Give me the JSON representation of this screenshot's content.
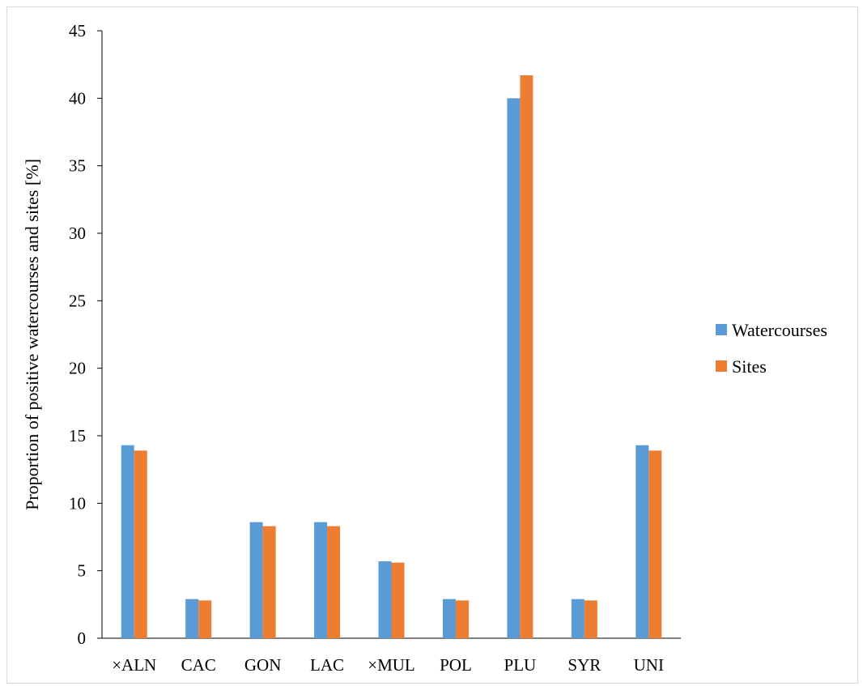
{
  "chart_data": {
    "type": "bar",
    "categories": [
      "×ALN",
      "CAC",
      "GON",
      "LAC",
      "×MUL",
      "POL",
      "PLU",
      "SYR",
      "UNI"
    ],
    "series": [
      {
        "name": "Watercourses",
        "color": "#5b9bd5",
        "values": [
          14.3,
          2.9,
          8.6,
          8.6,
          5.7,
          2.9,
          40.0,
          2.9,
          14.3
        ]
      },
      {
        "name": "Sites",
        "color": "#ed7d31",
        "values": [
          13.9,
          2.8,
          8.3,
          8.3,
          5.6,
          2.8,
          41.7,
          2.8,
          13.9
        ]
      }
    ],
    "title": "",
    "xlabel": "",
    "ylabel": "Proportion of positive watercourses and sites [%]",
    "ylim": [
      0,
      45
    ],
    "yticks": [
      "0",
      "5",
      "10",
      "15",
      "20",
      "25",
      "30",
      "35",
      "40",
      "45"
    ],
    "grid": false,
    "legend_position": "right"
  }
}
